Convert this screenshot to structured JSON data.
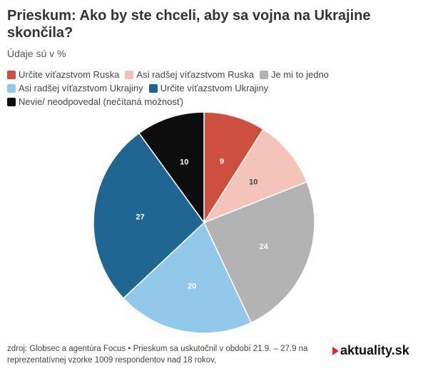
{
  "title": "Prieskum: Ako by ste chceli, aby sa vojna na Ukrajine skončila?",
  "subtitle": "Údaje sú v %",
  "legend": [
    {
      "label": "Určite víťazstvom Ruska",
      "color": "#cd4f3f"
    },
    {
      "label": "Asi radšej víťazstvom Ruska",
      "color": "#f4c4bb"
    },
    {
      "label": "Je mi to jedno",
      "color": "#b3b3b3"
    },
    {
      "label": "Asi radšej víťazstvom Ukrajiny",
      "color": "#92c9ea"
    },
    {
      "label": "Určite víťazstvom Ukrajiny",
      "color": "#1f6792"
    },
    {
      "label": "Nevie/ neodpovedal (nečítaná možnosť)",
      "color": "#0d0d0d"
    }
  ],
  "chart_data": {
    "type": "pie",
    "categories": [
      "Určite víťazstvom Ruska",
      "Asi radšej víťazstvom Ruska",
      "Je mi to jedno",
      "Asi radšej víťazstvom Ukrajiny",
      "Určite víťazstvom Ukrajiny",
      "Nevie/ neodpovedal (nečítaná možnosť)"
    ],
    "values": [
      9,
      10,
      24,
      20,
      27,
      10
    ],
    "colors": [
      "#cd4f3f",
      "#f4c4bb",
      "#b3b3b3",
      "#92c9ea",
      "#1f6792",
      "#0d0d0d"
    ],
    "label_colors": [
      "#ffffff",
      "#444444",
      "#ffffff",
      "#ffffff",
      "#ffffff",
      "#ffffff"
    ],
    "unit": "%"
  },
  "footer": {
    "line1": "zdroj: Globsec a agentúra Focus • Prieskum sa uskutočnil v období 21.9. – 27.9 na",
    "line2": "reprezentatívnej vzorke 1009 respondentov nad 18 rokov,"
  },
  "logo": "aktuality.sk"
}
